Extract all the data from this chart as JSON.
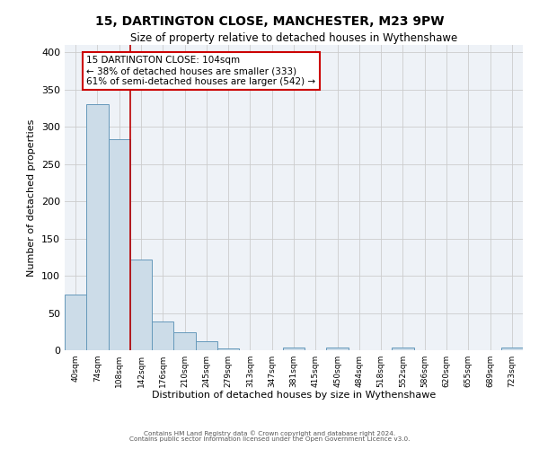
{
  "title_line1": "15, DARTINGTON CLOSE, MANCHESTER, M23 9PW",
  "title_line2": "Size of property relative to detached houses in Wythenshawe",
  "xlabel": "Distribution of detached houses by size in Wythenshawe",
  "ylabel": "Number of detached properties",
  "bin_labels": [
    "40sqm",
    "74sqm",
    "108sqm",
    "142sqm",
    "176sqm",
    "210sqm",
    "245sqm",
    "279sqm",
    "313sqm",
    "347sqm",
    "381sqm",
    "415sqm",
    "450sqm",
    "484sqm",
    "518sqm",
    "552sqm",
    "586sqm",
    "620sqm",
    "655sqm",
    "689sqm",
    "723sqm"
  ],
  "bar_values": [
    75,
    330,
    283,
    122,
    38,
    24,
    12,
    3,
    0,
    0,
    4,
    0,
    4,
    0,
    0,
    4,
    0,
    0,
    0,
    0,
    4
  ],
  "bar_color": "#ccdce8",
  "bar_edge_color": "#6699bb",
  "grid_color": "#cccccc",
  "bg_color": "#eef2f7",
  "vline_x_index": 2,
  "vline_color": "#bb0000",
  "annotation_title": "15 DARTINGTON CLOSE: 104sqm",
  "annotation_line2": "← 38% of detached houses are smaller (333)",
  "annotation_line3": "61% of semi-detached houses are larger (542) →",
  "annotation_box_color": "#ffffff",
  "annotation_border_color": "#cc0000",
  "ylim": [
    0,
    410
  ],
  "yticks": [
    0,
    50,
    100,
    150,
    200,
    250,
    300,
    350,
    400
  ],
  "footer_line1": "Contains HM Land Registry data © Crown copyright and database right 2024.",
  "footer_line2": "Contains public sector information licensed under the Open Government Licence v3.0."
}
